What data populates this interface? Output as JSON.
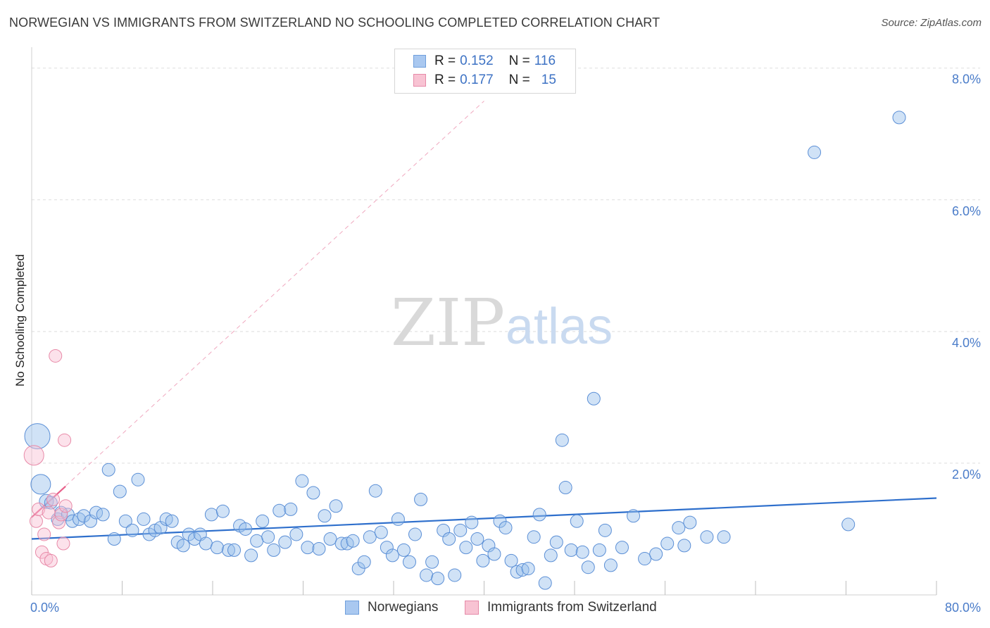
{
  "title": "NORWEGIAN VS IMMIGRANTS FROM SWITZERLAND NO SCHOOLING COMPLETED CORRELATION CHART",
  "source": "Source: ZipAtlas.com",
  "watermark": {
    "zip": "ZIP",
    "atlas": "atlas"
  },
  "legend_stats": [
    {
      "r_label": "R = ",
      "r_value": "0.152",
      "n_label": "N = ",
      "n_value": "116",
      "color": "#a9c8f0",
      "border": "#6f9fdc"
    },
    {
      "r_label": "R = ",
      "r_value": "0.177",
      "n_label": "N = ",
      "n_value": "15",
      "color": "#f8c3d3",
      "border": "#e68aa8"
    }
  ],
  "bottom_legend": [
    {
      "label": "Norwegians",
      "color": "#a9c8f0",
      "border": "#6f9fdc"
    },
    {
      "label": "Immigrants from Switzerland",
      "color": "#f8c3d3",
      "border": "#e68aa8"
    }
  ],
  "colors": {
    "blue": "#5b8fd6",
    "blue_fill": "rgba(150,190,235,0.45)",
    "blue_line": "#2e6fcc",
    "pink": "#e88aa8",
    "pink_fill": "rgba(248,190,210,0.45)",
    "pink_line": "#e8608a",
    "grid": "#dedede",
    "tick_text": "#4a7cc9"
  },
  "chart_data": {
    "type": "scatter",
    "title": "NORWEGIAN VS IMMIGRANTS FROM SWITZERLAND NO SCHOOLING COMPLETED CORRELATION CHART",
    "xlabel": "",
    "ylabel": "No Schooling Completed",
    "xlim": [
      0,
      80
    ],
    "ylim": [
      0,
      8.2
    ],
    "x_tick_labels": [
      "0.0%",
      "80.0%"
    ],
    "y_ticks": [
      {
        "value": 2,
        "label": "2.0%"
      },
      {
        "value": 4,
        "label": "4.0%"
      },
      {
        "value": 6,
        "label": "6.0%"
      },
      {
        "value": 8,
        "label": "8.0%"
      }
    ],
    "series": [
      {
        "name": "Norwegians",
        "trend": {
          "x0": 0,
          "y0": 0.85,
          "x1": 80,
          "y1": 1.47
        },
        "points": [
          [
            0.5,
            2.41,
            18
          ],
          [
            0.8,
            1.68,
            14
          ],
          [
            1.3,
            1.42,
            10
          ],
          [
            1.7,
            1.4,
            9
          ],
          [
            2.3,
            1.15,
            9
          ],
          [
            2.6,
            1.25,
            9
          ],
          [
            3.2,
            1.22,
            9
          ],
          [
            3.6,
            1.12,
            9
          ],
          [
            4.2,
            1.15,
            9
          ],
          [
            4.6,
            1.2,
            9
          ],
          [
            5.2,
            1.12,
            9
          ],
          [
            5.7,
            1.25,
            9
          ],
          [
            6.3,
            1.22,
            9
          ],
          [
            6.8,
            1.9,
            9
          ],
          [
            7.3,
            0.85,
            9
          ],
          [
            7.8,
            1.57,
            9
          ],
          [
            8.3,
            1.12,
            9
          ],
          [
            8.9,
            0.98,
            9
          ],
          [
            9.4,
            1.75,
            9
          ],
          [
            9.9,
            1.15,
            9
          ],
          [
            10.4,
            0.92,
            9
          ],
          [
            10.9,
            0.98,
            9
          ],
          [
            11.4,
            1.02,
            9
          ],
          [
            11.9,
            1.15,
            9
          ],
          [
            12.4,
            1.12,
            9
          ],
          [
            12.9,
            0.8,
            9
          ],
          [
            13.4,
            0.75,
            9
          ],
          [
            13.9,
            0.92,
            9
          ],
          [
            14.4,
            0.85,
            9
          ],
          [
            14.9,
            0.92,
            9
          ],
          [
            15.4,
            0.78,
            9
          ],
          [
            15.9,
            1.22,
            9
          ],
          [
            16.4,
            0.72,
            9
          ],
          [
            16.9,
            1.27,
            9
          ],
          [
            17.4,
            0.68,
            9
          ],
          [
            17.9,
            0.68,
            9
          ],
          [
            18.4,
            1.05,
            9
          ],
          [
            18.9,
            1.0,
            9
          ],
          [
            19.4,
            0.6,
            9
          ],
          [
            19.9,
            0.82,
            9
          ],
          [
            20.4,
            1.12,
            9
          ],
          [
            20.9,
            0.88,
            9
          ],
          [
            21.4,
            0.68,
            9
          ],
          [
            21.9,
            1.28,
            9
          ],
          [
            22.4,
            0.8,
            9
          ],
          [
            22.9,
            1.3,
            9
          ],
          [
            23.4,
            0.92,
            9
          ],
          [
            23.9,
            1.73,
            9
          ],
          [
            24.4,
            0.72,
            9
          ],
          [
            24.9,
            1.55,
            9
          ],
          [
            25.4,
            0.7,
            9
          ],
          [
            25.9,
            1.2,
            9
          ],
          [
            26.4,
            0.85,
            9
          ],
          [
            26.9,
            1.35,
            9
          ],
          [
            27.4,
            0.78,
            9
          ],
          [
            27.9,
            0.78,
            9
          ],
          [
            28.4,
            0.82,
            9
          ],
          [
            28.9,
            0.4,
            9
          ],
          [
            29.4,
            0.5,
            9
          ],
          [
            29.9,
            0.88,
            9
          ],
          [
            30.4,
            1.58,
            9
          ],
          [
            30.9,
            0.95,
            9
          ],
          [
            31.4,
            0.72,
            9
          ],
          [
            31.9,
            0.6,
            9
          ],
          [
            32.4,
            1.15,
            9
          ],
          [
            32.9,
            0.68,
            9
          ],
          [
            33.4,
            0.5,
            9
          ],
          [
            33.9,
            0.92,
            9
          ],
          [
            34.4,
            1.45,
            9
          ],
          [
            34.9,
            0.3,
            9
          ],
          [
            35.4,
            0.5,
            9
          ],
          [
            35.9,
            0.25,
            9
          ],
          [
            36.4,
            0.98,
            9
          ],
          [
            36.9,
            0.85,
            9
          ],
          [
            37.4,
            0.3,
            9
          ],
          [
            37.9,
            0.98,
            9
          ],
          [
            38.4,
            0.72,
            9
          ],
          [
            38.9,
            1.1,
            9
          ],
          [
            39.4,
            0.85,
            9
          ],
          [
            39.9,
            0.52,
            9
          ],
          [
            40.4,
            0.75,
            9
          ],
          [
            40.9,
            0.62,
            9
          ],
          [
            41.4,
            1.12,
            9
          ],
          [
            41.9,
            1.02,
            9
          ],
          [
            42.4,
            0.52,
            9
          ],
          [
            42.9,
            0.35,
            9
          ],
          [
            43.4,
            0.38,
            9
          ],
          [
            43.9,
            0.4,
            9
          ],
          [
            44.4,
            0.88,
            9
          ],
          [
            44.9,
            1.22,
            9
          ],
          [
            45.4,
            0.18,
            9
          ],
          [
            45.9,
            0.6,
            9
          ],
          [
            46.4,
            0.8,
            9
          ],
          [
            46.9,
            2.35,
            9
          ],
          [
            47.2,
            1.63,
            9
          ],
          [
            47.7,
            0.68,
            9
          ],
          [
            48.2,
            1.12,
            9
          ],
          [
            48.7,
            0.65,
            9
          ],
          [
            49.2,
            0.42,
            9
          ],
          [
            49.7,
            2.98,
            9
          ],
          [
            50.2,
            0.68,
            9
          ],
          [
            50.7,
            0.98,
            9
          ],
          [
            51.2,
            0.45,
            9
          ],
          [
            52.2,
            0.72,
            9
          ],
          [
            53.2,
            1.2,
            9
          ],
          [
            54.2,
            0.55,
            9
          ],
          [
            55.2,
            0.62,
            9
          ],
          [
            56.2,
            0.78,
            9
          ],
          [
            57.2,
            1.02,
            9
          ],
          [
            57.7,
            0.75,
            9
          ],
          [
            58.2,
            1.1,
            9
          ],
          [
            59.7,
            0.88,
            9
          ],
          [
            61.2,
            0.88,
            9
          ],
          [
            69.2,
            6.72,
            9
          ],
          [
            72.2,
            1.07,
            9
          ],
          [
            76.7,
            7.25,
            9
          ]
        ]
      },
      {
        "name": "Immigrants from Switzerland",
        "trend": {
          "x0": 0,
          "y0": 1.18,
          "x1": 3.0,
          "y1": 1.65
        },
        "trend_extension": {
          "x0": 0,
          "y0": 1.18,
          "x1": 40,
          "y1": 7.5
        },
        "points": [
          [
            0.2,
            2.12,
            14
          ],
          [
            0.4,
            1.12,
            9
          ],
          [
            0.6,
            1.3,
            9
          ],
          [
            0.9,
            0.65,
            9
          ],
          [
            1.1,
            0.92,
            9
          ],
          [
            1.3,
            0.55,
            9
          ],
          [
            1.5,
            1.25,
            9
          ],
          [
            1.7,
            0.52,
            9
          ],
          [
            1.9,
            1.45,
            9
          ],
          [
            2.1,
            3.63,
            9
          ],
          [
            2.4,
            1.1,
            9
          ],
          [
            2.6,
            1.22,
            9
          ],
          [
            2.8,
            0.78,
            9
          ],
          [
            2.9,
            2.35,
            9
          ],
          [
            3.0,
            1.35,
            9
          ]
        ]
      }
    ]
  }
}
